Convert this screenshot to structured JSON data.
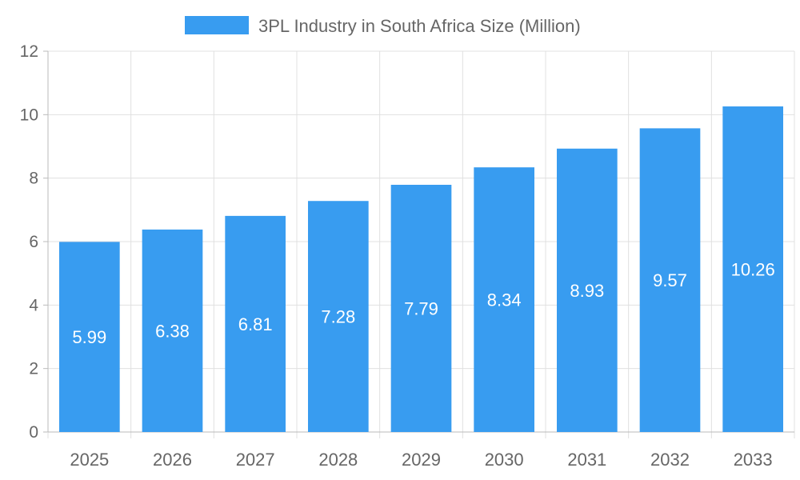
{
  "chart_data": {
    "type": "bar",
    "title": "",
    "legend": {
      "position": "top",
      "entries": [
        "3PL Industry in South Africa Size (Million)"
      ]
    },
    "categories": [
      "2025",
      "2026",
      "2027",
      "2028",
      "2029",
      "2030",
      "2031",
      "2032",
      "2033"
    ],
    "series": [
      {
        "name": "3PL Industry in South Africa Size (Million)",
        "values": [
          5.99,
          6.38,
          6.81,
          7.28,
          7.79,
          8.34,
          8.93,
          9.57,
          10.26
        ],
        "color": "#389cf0"
      }
    ],
    "data_labels": [
      "5.99",
      "6.38",
      "6.81",
      "7.28",
      "7.79",
      "8.34",
      "8.93",
      "9.57",
      "10.26"
    ],
    "ylim": [
      0,
      12
    ],
    "yticks": [
      "0",
      "2",
      "4",
      "6",
      "8",
      "10",
      "12"
    ],
    "grid": true,
    "xlabel": "",
    "ylabel": ""
  }
}
